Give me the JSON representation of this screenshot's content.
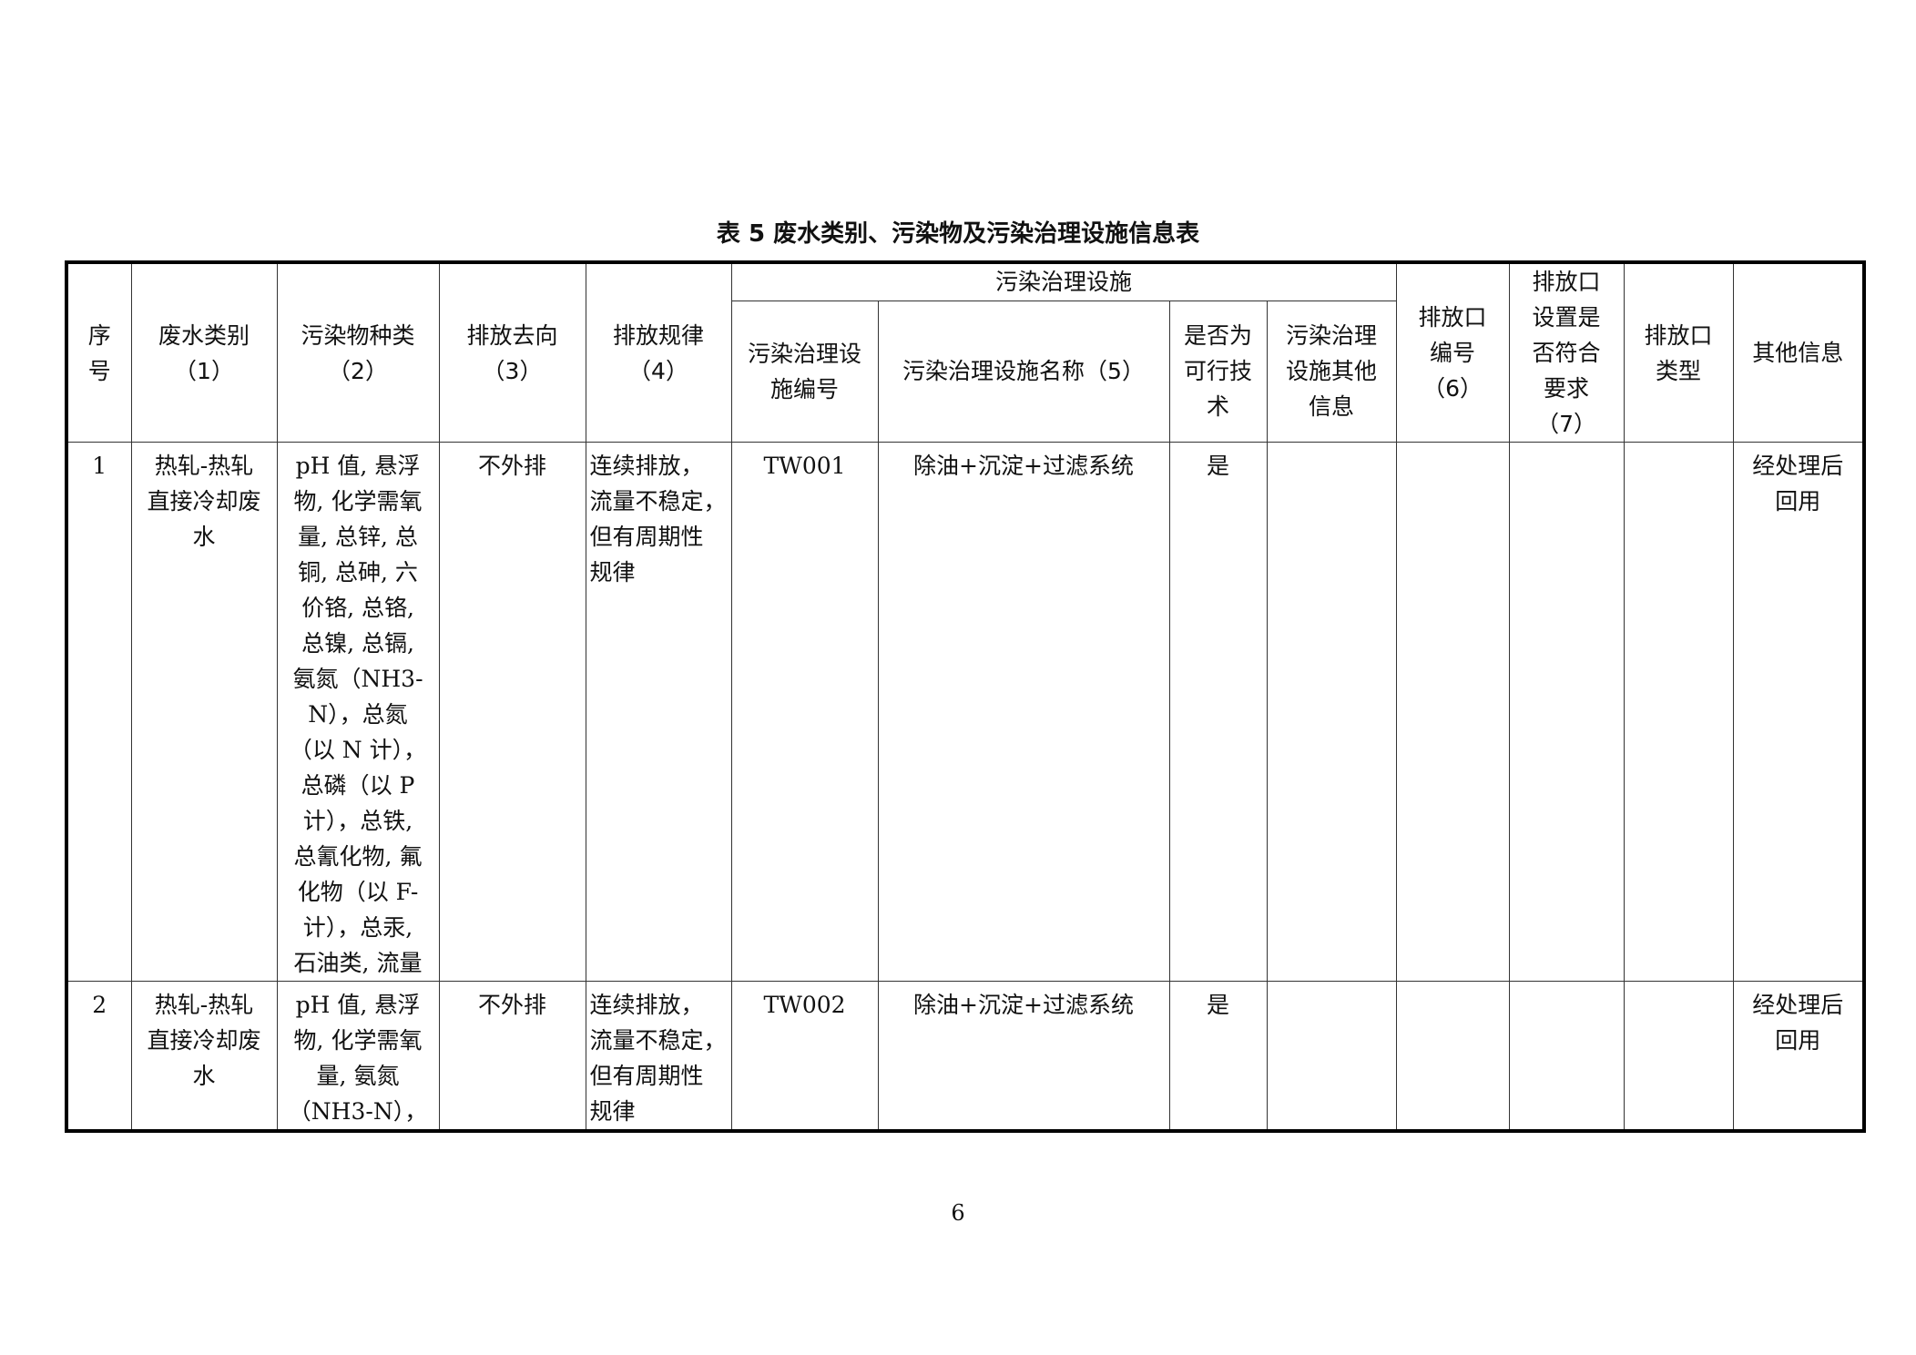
{
  "title": "表 5   废水类别、污染物及污染治理设施信息表",
  "headers": {
    "seq": "序\n号",
    "wastewater_type": "废水类别\n（1）",
    "pollutant_type": "污染物种类\n（2）",
    "discharge_destination": "排放去向\n（3）",
    "discharge_pattern": "排放规律\n（4）",
    "facility_group": "污染治理设施",
    "facility_id": "污染治理设\n施编号",
    "facility_name": "污染治理设施名称（5）",
    "feasible": "是否为\n可行技\n术",
    "facility_other": "污染治理\n设施其他\n信息",
    "outlet_id": "排放口\n编号\n（6）",
    "outlet_compliant": "排放口\n设置是\n否符合\n要求\n（7）",
    "outlet_type": "排放口\n类型",
    "other_info": "其他信息"
  },
  "rows": [
    {
      "seq": "1",
      "wastewater_type": "热轧-热轧\n直接冷却废\n水",
      "pollutant_type": "pH 值, 悬浮\n物, 化学需氧\n量, 总锌, 总\n铜, 总砷, 六\n价铬, 总铬,\n总镍, 总镉,\n氨氮（NH3-\nN），总氮\n（以 N 计），\n总磷（以 P\n计），总铁,\n总氰化物, 氟\n化物（以 F-\n计），总汞,\n石油类, 流量",
      "discharge_destination": "不外排",
      "discharge_pattern": "连续排放，\n流量不稳定，\n但有周期性\n规律",
      "facility_id": "TW001",
      "facility_name": "除油+沉淀+过滤系统",
      "feasible": "是",
      "facility_other": "",
      "outlet_id": "",
      "outlet_compliant": "",
      "outlet_type": "",
      "other_info": "经处理后\n回用"
    },
    {
      "seq": "2",
      "wastewater_type": "热轧-热轧\n直接冷却废\n水",
      "pollutant_type": "pH 值, 悬浮\n物, 化学需氧\n量, 氨氮\n（NH3-N），",
      "discharge_destination": "不外排",
      "discharge_pattern": "连续排放，\n流量不稳定，\n但有周期性\n规律",
      "facility_id": "TW002",
      "facility_name": "除油+沉淀+过滤系统",
      "feasible": "是",
      "facility_other": "",
      "outlet_id": "",
      "outlet_compliant": "",
      "outlet_type": "",
      "other_info": "经处理后\n回用"
    }
  ],
  "page_number": "6"
}
